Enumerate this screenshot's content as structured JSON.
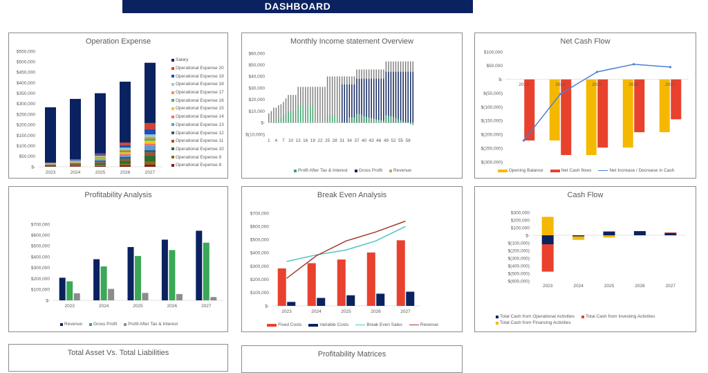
{
  "header": {
    "title": "DASHBOARD"
  },
  "chart_data": [
    {
      "type": "bar",
      "stacked": true,
      "title": "Operation Expense",
      "categories": [
        "2023",
        "2024",
        "2025",
        "2026",
        "2027"
      ],
      "ylim": [
        0,
        550000
      ],
      "yticks": [
        0,
        50000,
        100000,
        150000,
        200000,
        250000,
        300000,
        350000,
        400000,
        450000,
        500000,
        550000
      ],
      "ytick_labels": [
        "$-",
        "$50,000",
        "$100,000",
        "$150,000",
        "$200,000",
        "$250,000",
        "$300,000",
        "$350,000",
        "$400,000",
        "$450,000",
        "$500,000",
        "$550,000"
      ],
      "legend": "right",
      "series": [
        {
          "name": "Operational Expense 8",
          "color": "#7b1e1e",
          "values": [
            1500,
            2500,
            4000,
            7000,
            10000
          ]
        },
        {
          "name": "Operational Expense 9",
          "color": "#8b6914",
          "values": [
            2000,
            3000,
            5000,
            8000,
            14000
          ]
        },
        {
          "name": "Operational Expense 10",
          "color": "#2e6b2e",
          "values": [
            3000,
            5000,
            8000,
            14000,
            30000
          ]
        },
        {
          "name": "Operational Expense 11",
          "color": "#a0522d",
          "values": [
            1500,
            3000,
            5000,
            8000,
            14000
          ]
        },
        {
          "name": "Operational Expense 12",
          "color": "#2f5f6f",
          "values": [
            2000,
            3500,
            7000,
            10000,
            12000
          ]
        },
        {
          "name": "Operational Expense 13",
          "color": "#5b9bd5",
          "values": [
            1000,
            2000,
            4000,
            8000,
            20000
          ]
        },
        {
          "name": "Operational Expense 14",
          "color": "#e57373",
          "values": [
            1000,
            2000,
            3000,
            6000,
            10000
          ]
        },
        {
          "name": "Operational Expense 15",
          "color": "#f5c518",
          "values": [
            1000,
            2000,
            4000,
            8000,
            14000
          ]
        },
        {
          "name": "Operational Expense 16",
          "color": "#4caf6a",
          "values": [
            1500,
            2500,
            4000,
            8000,
            10000
          ]
        },
        {
          "name": "Operational Expense 17",
          "color": "#f0904a",
          "values": [
            1000,
            2000,
            4000,
            6000,
            8000
          ]
        },
        {
          "name": "Operational Expense 18",
          "color": "#8fcfcf",
          "values": [
            1500,
            2500,
            5000,
            8000,
            12000
          ]
        },
        {
          "name": "Operational Expense 19",
          "color": "#1f4eb4",
          "values": [
            1500,
            3000,
            6000,
            12000,
            25000
          ]
        },
        {
          "name": "Operational Expense 20",
          "color": "#d2452f",
          "values": [
            1500,
            3000,
            4000,
            12000,
            29000
          ]
        },
        {
          "name": "Salary",
          "color": "#0b2260",
          "values": [
            263000,
            287000,
            287000,
            290000,
            287000
          ]
        }
      ]
    },
    {
      "type": "bar",
      "overlap": true,
      "title": "Monthly Income statement Overview",
      "categories": [
        "1",
        "2",
        "3",
        "4",
        "5",
        "6",
        "7",
        "8",
        "9",
        "10",
        "11",
        "12",
        "13",
        "14",
        "15",
        "16",
        "17",
        "18",
        "19",
        "20",
        "21",
        "22",
        "23",
        "24",
        "25",
        "26",
        "27",
        "28",
        "29",
        "30",
        "31",
        "32",
        "33",
        "34",
        "35",
        "36",
        "37",
        "38",
        "39",
        "40",
        "41",
        "42",
        "43",
        "44",
        "45",
        "46",
        "47",
        "48",
        "49",
        "50",
        "51",
        "52",
        "53",
        "54",
        "55",
        "56",
        "57",
        "58",
        "59",
        "60"
      ],
      "xtick_labels": [
        "1",
        "4",
        "7",
        "10",
        "13",
        "16",
        "19",
        "22",
        "25",
        "28",
        "31",
        "34",
        "37",
        "40",
        "43",
        "46",
        "49",
        "52",
        "55",
        "58"
      ],
      "ylim": [
        -10000,
        60000
      ],
      "yticks": [
        -10000,
        0,
        10000,
        20000,
        30000,
        40000,
        50000,
        60000
      ],
      "ytick_labels": [
        "$(10,000)",
        "$-",
        "$10,000",
        "$20,000",
        "$30,000",
        "$40,000",
        "$50,000",
        "$60,000"
      ],
      "legend": "bottom",
      "series": [
        {
          "name": "Revenue",
          "color": "#c9a070",
          "bar_color": "#7a7a7a",
          "values": [
            8000,
            10000,
            13000,
            13000,
            15000,
            16000,
            18000,
            21000,
            24000,
            24000,
            24000,
            24000,
            31000,
            31000,
            31000,
            31000,
            31000,
            31000,
            31000,
            31000,
            31000,
            31000,
            31000,
            31000,
            40000,
            40000,
            40000,
            40000,
            40000,
            40000,
            40000,
            40000,
            40000,
            40000,
            40000,
            40000,
            46000,
            46000,
            46000,
            46000,
            46000,
            46000,
            46000,
            46000,
            46000,
            46000,
            46000,
            46000,
            53000,
            53000,
            53000,
            53000,
            53000,
            53000,
            53000,
            53000,
            53000,
            53000,
            53000,
            53000
          ]
        },
        {
          "name": "Gross Profit",
          "color": "#0b2260",
          "values": [
            0,
            0,
            0,
            0,
            0,
            0,
            0,
            0,
            0,
            0,
            0,
            0,
            0,
            0,
            0,
            0,
            0,
            0,
            0,
            0,
            0,
            0,
            0,
            0,
            0,
            0,
            0,
            0,
            0,
            0,
            33000,
            33000,
            33000,
            33000,
            33000,
            33000,
            38000,
            38000,
            38000,
            38000,
            38000,
            38000,
            38000,
            38000,
            38000,
            38000,
            38000,
            38000,
            44000,
            44000,
            44000,
            44000,
            44000,
            44000,
            44000,
            44000,
            44000,
            44000,
            44000,
            44000
          ]
        },
        {
          "name": "Profit After Tax & Interest",
          "color": "#3aa56a",
          "values": [
            0,
            0,
            1000,
            1000,
            3000,
            4000,
            6000,
            8000,
            9500,
            9500,
            10000,
            10000,
            15000,
            15000,
            15000,
            15000,
            15000,
            15000,
            15000,
            0,
            0,
            0,
            0,
            0,
            6500,
            6500,
            6500,
            6500,
            6500,
            6500,
            0,
            0,
            0,
            4500,
            4500,
            4500,
            7500,
            7500,
            7000,
            5500,
            5000,
            4500,
            4000,
            3500,
            3000,
            2500,
            2000,
            1500,
            6500,
            6000,
            5500,
            5000,
            4000,
            3000,
            2000,
            1000,
            500,
            0,
            -1500,
            -2000
          ]
        }
      ],
      "legend_order": [
        "Profit After Tax & Interest",
        "Gross Profit",
        "Revenue"
      ]
    },
    {
      "type": "bar",
      "title": "Net Cash Flow",
      "categories": [
        "2023",
        "2024",
        "2025",
        "2026",
        "2027"
      ],
      "ylim": [
        -300000,
        100000
      ],
      "yticks": [
        -300000,
        -250000,
        -200000,
        -150000,
        -100000,
        -50000,
        0,
        50000,
        100000
      ],
      "ytick_labels": [
        "$(300,000)",
        "$(250,000)",
        "$(200,000)",
        "$(150,000)",
        "$(100,000)",
        "$(50,000)",
        "$-",
        "$50,000",
        "$100,000"
      ],
      "legend": "bottom",
      "series": [
        {
          "name": "Opening Balance",
          "kind": "bar",
          "color": "#f5b800",
          "values": [
            0,
            -222000,
            -275000,
            -248000,
            -192000
          ]
        },
        {
          "name": "Net Cash flows",
          "kind": "bar",
          "color": "#e8412e",
          "values": [
            -222000,
            -275000,
            -248000,
            -192000,
            -145000
          ]
        },
        {
          "name": "Net Increase / Decrease in Cash",
          "kind": "line",
          "color": "#4a7fd4",
          "values": [
            -222000,
            -53000,
            27000,
            55000,
            45000
          ]
        }
      ]
    },
    {
      "type": "bar",
      "title": "Profitability Analysis",
      "categories": [
        "2023",
        "2024",
        "2025",
        "2026",
        "2027"
      ],
      "ylim": [
        0,
        700000
      ],
      "yticks": [
        0,
        100000,
        200000,
        300000,
        400000,
        500000,
        600000,
        700000
      ],
      "ytick_labels": [
        "$-",
        "$100,000",
        "$200,000",
        "$300,000",
        "$400,000",
        "$500,000",
        "$600,000",
        "$700,000"
      ],
      "legend": "bottom",
      "series": [
        {
          "name": "Revenue",
          "color": "#0b2260",
          "values": [
            208000,
            378000,
            490000,
            558000,
            640000
          ]
        },
        {
          "name": "Gross Profit",
          "color": "#3aa856",
          "values": [
            175000,
            312000,
            408000,
            462000,
            530000
          ]
        },
        {
          "name": "Profit After Tax & Interest",
          "color": "#8c8c8c",
          "values": [
            65000,
            105000,
            68000,
            58000,
            30000
          ]
        }
      ]
    },
    {
      "type": "bar",
      "title": "Break Even Analysis",
      "categories": [
        "2023",
        "2024",
        "2025",
        "2026",
        "2027"
      ],
      "ylim": [
        0,
        700000
      ],
      "yticks": [
        0,
        100000,
        200000,
        300000,
        400000,
        500000,
        600000,
        700000
      ],
      "ytick_labels": [
        "$-",
        "$100,000",
        "$200,000",
        "$300,000",
        "$400,000",
        "$500,000",
        "$600,000",
        "$700,000"
      ],
      "legend": "bottom",
      "series": [
        {
          "name": "Fixed Costs",
          "kind": "bar",
          "color": "#e8412e",
          "values": [
            283000,
            322000,
            350000,
            403000,
            495000
          ]
        },
        {
          "name": "Variable Costs",
          "kind": "bar",
          "color": "#0b2260",
          "values": [
            30000,
            60000,
            80000,
            92000,
            107000
          ]
        },
        {
          "name": "Break Even Sales",
          "kind": "line",
          "color": "#4cc4c0",
          "values": [
            335000,
            385000,
            422000,
            490000,
            600000
          ]
        },
        {
          "name": "Revenue",
          "kind": "line",
          "color": "#a33a2e",
          "values": [
            208000,
            378000,
            490000,
            558000,
            640000
          ]
        }
      ]
    },
    {
      "type": "bar",
      "stacked": true,
      "title": "Cash Flow",
      "categories": [
        "2023",
        "2024",
        "2025",
        "2026",
        "2027"
      ],
      "ylim": [
        -600000,
        300000
      ],
      "yticks": [
        -600000,
        -500000,
        -400000,
        -300000,
        -200000,
        -100000,
        0,
        100000,
        200000,
        300000
      ],
      "ytick_labels": [
        "$(600,000)",
        "$(500,000)",
        "$(400,000)",
        "$(300,000)",
        "$(200,000)",
        "$(100,000)",
        "$-",
        "$100,000",
        "$200,000",
        "$300,000"
      ],
      "legend": "bottom",
      "series": [
        {
          "name": "Total Cash from Operational Activities",
          "color": "#0b2260",
          "values": [
            -118000,
            -15000,
            50000,
            55000,
            30000
          ]
        },
        {
          "name": "Total Cash from Investing Activities",
          "color": "#e8412e",
          "values": [
            -360000,
            0,
            0,
            0,
            8000
          ]
        },
        {
          "name": "Total Cash from Financing Activities",
          "color": "#f5b800",
          "values": [
            242000,
            -45000,
            -30000,
            0,
            0
          ]
        }
      ]
    }
  ],
  "lower_panels": [
    {
      "title": "Total Asset Vs. Total Liabilities"
    },
    {
      "title": "Profitability Matrices"
    }
  ]
}
